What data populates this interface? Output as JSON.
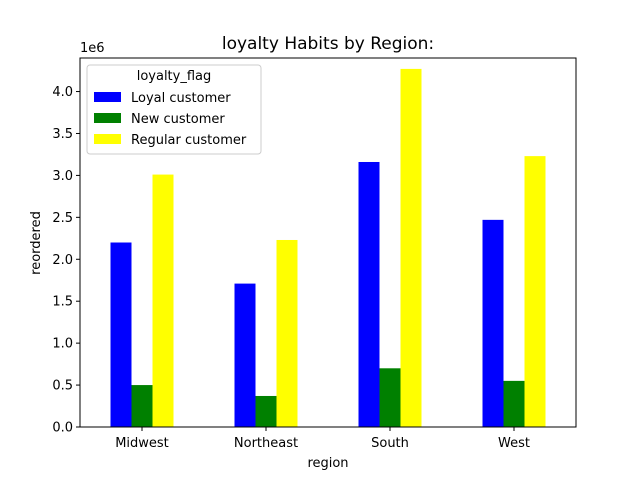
{
  "chart_data": {
    "type": "bar",
    "title": "loyalty Habits by Region:",
    "xlabel": "region",
    "ylabel": "reordered",
    "offset_label": "1e6",
    "categories": [
      "Midwest",
      "Northeast",
      "South",
      "West"
    ],
    "series": [
      {
        "name": "Loyal customer",
        "color": "#0000ff",
        "values": [
          2200000,
          1710000,
          3160000,
          2470000
        ]
      },
      {
        "name": "New customer",
        "color": "#008000",
        "values": [
          500000,
          370000,
          700000,
          550000
        ]
      },
      {
        "name": "Regular customer",
        "color": "#ffff00",
        "values": [
          3010000,
          2230000,
          4270000,
          3230000
        ]
      }
    ],
    "ylim": [
      0,
      4400000
    ],
    "yticks": [
      0,
      500000,
      1000000,
      1500000,
      2000000,
      2500000,
      3000000,
      3500000,
      4000000
    ],
    "ytick_labels": [
      "0.0",
      "0.5",
      "1.0",
      "1.5",
      "2.0",
      "2.5",
      "3.0",
      "3.5",
      "4.0"
    ],
    "legend": {
      "title": "loyalty_flag",
      "placement": "top-left"
    },
    "grid": false
  }
}
